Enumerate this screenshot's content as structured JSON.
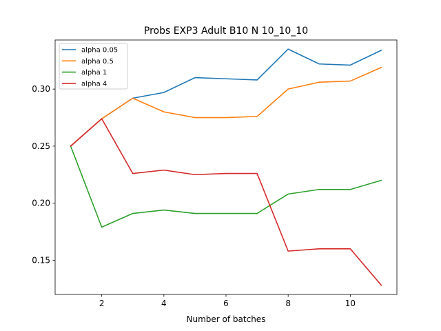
{
  "chart_data": {
    "type": "line",
    "title": "Probs EXP3 Adult B10 N 10_10_10",
    "xlabel": "Number of batches",
    "ylabel": "",
    "xlim": [
      0.5,
      11.5
    ],
    "ylim": [
      0.12,
      0.343
    ],
    "xticks": [
      2,
      4,
      6,
      8,
      10
    ],
    "yticks": [
      0.15,
      0.2,
      0.25,
      0.3
    ],
    "x": [
      1,
      2,
      3,
      4,
      5,
      6,
      7,
      8,
      9,
      10,
      11
    ],
    "grid": false,
    "legend_position": "upper-left",
    "series": [
      {
        "name": "alpha 0.05",
        "color": "#1f77b4",
        "values": [
          0.25,
          0.274,
          0.292,
          0.297,
          0.31,
          0.309,
          0.308,
          0.335,
          0.322,
          0.321,
          0.334
        ]
      },
      {
        "name": "alpha 0.5",
        "color": "#ff7f0e",
        "values": [
          0.25,
          0.274,
          0.292,
          0.28,
          0.275,
          0.275,
          0.276,
          0.3,
          0.306,
          0.307,
          0.319
        ]
      },
      {
        "name": "alpha 1",
        "color": "#2ca02c",
        "values": [
          0.25,
          0.179,
          0.191,
          0.194,
          0.191,
          0.191,
          0.191,
          0.208,
          0.212,
          0.212,
          0.22
        ]
      },
      {
        "name": "alpha 4",
        "color": "#d62728",
        "values": [
          0.25,
          0.274,
          0.226,
          0.229,
          0.225,
          0.226,
          0.226,
          0.158,
          0.16,
          0.16,
          0.128
        ]
      }
    ]
  }
}
